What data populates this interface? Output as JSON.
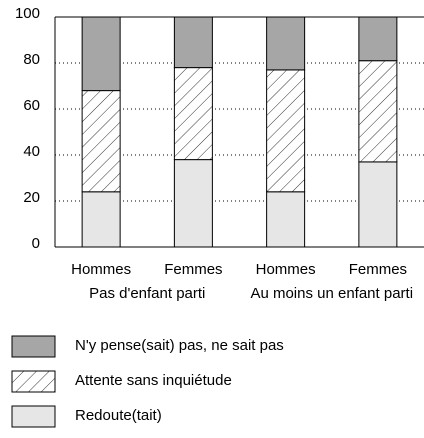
{
  "chart_data": {
    "type": "stacked_bar",
    "categories": [
      "Hommes",
      "Femmes",
      "Hommes",
      "Femmes"
    ],
    "groups": [
      {
        "name": "Pas d'enfant parti",
        "size": 2
      },
      {
        "name": "Au moins un enfant parti",
        "size": 2
      }
    ],
    "series": [
      {
        "name": "Redoute(tait)",
        "color": "#e6e6e6",
        "values": [
          24,
          38,
          24,
          37
        ]
      },
      {
        "name": "Attente sans inquiétude",
        "color": "#ffffff",
        "hatch": true,
        "values": [
          44,
          40,
          53,
          44
        ]
      },
      {
        "name": "N'y pense(sait) pas, ne sait pas",
        "color": "#a6a6a6",
        "values": [
          32,
          22,
          23,
          19
        ]
      }
    ],
    "ylim": [
      0,
      100
    ],
    "yticks": [
      0,
      20,
      40,
      60,
      80,
      100
    ],
    "grid": true,
    "legend": "bottom"
  }
}
